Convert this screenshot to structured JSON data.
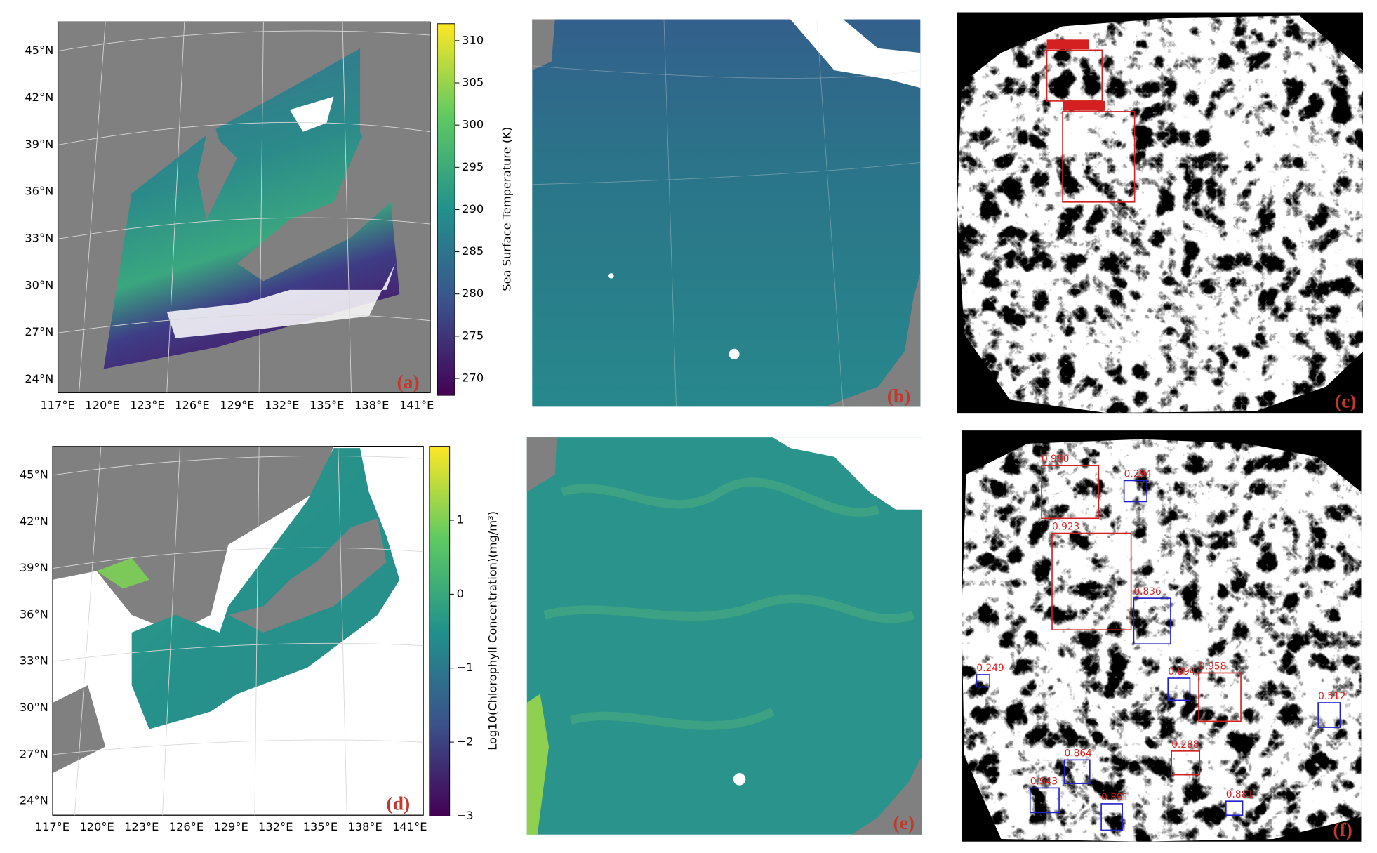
{
  "panel_a": {
    "label": "(a)",
    "lat_labels": [
      "45°N",
      "42°N",
      "39°N",
      "36°N",
      "33°N",
      "30°N",
      "27°N",
      "24°N"
    ],
    "lon_labels": [
      "117°E",
      "120°E",
      "123°E",
      "126°E",
      "129°E",
      "132°E",
      "135°E",
      "138°E",
      "141°E"
    ],
    "colorbar": {
      "label": "Sea Surface Temperature (K)",
      "lim": [
        268,
        312
      ],
      "ticks": [
        270,
        275,
        280,
        285,
        290,
        295,
        300,
        305,
        310
      ]
    }
  },
  "panel_b": {
    "label": "(b)"
  },
  "panel_c": {
    "label": "(c)"
  },
  "panel_d": {
    "label": "(d)",
    "lat_labels": [
      "45°N",
      "42°N",
      "39°N",
      "36°N",
      "33°N",
      "30°N",
      "27°N",
      "24°N"
    ],
    "lon_labels": [
      "117°E",
      "120°E",
      "123°E",
      "126°E",
      "129°E",
      "132°E",
      "135°E",
      "138°E",
      "141°E"
    ],
    "colorbar": {
      "label": "Log10(Chlorophyll Concentration)(mg/m³)",
      "lim": [
        -3,
        2
      ],
      "ticks": [
        {
          "value": -3,
          "label": "−3"
        },
        {
          "value": -2,
          "label": "−2"
        },
        {
          "value": -1,
          "label": "−1"
        },
        0,
        1
      ]
    }
  },
  "panel_e": {
    "label": "(e)"
  },
  "panel_f": {
    "label": "(f)",
    "detections": [
      "0.980",
      "0.294",
      "0.923",
      "0.836",
      "0.249",
      "0.894",
      "0.958",
      "0.512",
      "0.864",
      "0.288",
      "0.943",
      "0.891",
      "0.881"
    ]
  }
}
